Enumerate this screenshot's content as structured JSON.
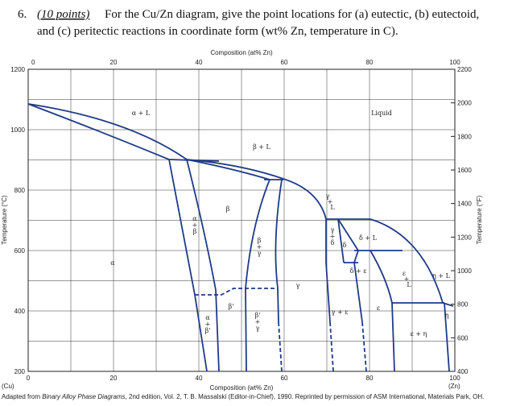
{
  "question": {
    "number": "6.",
    "points": "(10 points)",
    "line1": "For the Cu/Zn diagram, give the point locations for (a) eutectic, (b) eutectoid,",
    "line2": "and (c) peritectic reactions in coordinate form (wt% Zn, temperature in C)."
  },
  "figure": {
    "top_axis_title": "Composition (at% Zn)",
    "top_ticks": [
      "0",
      "20",
      "40",
      "60",
      "80",
      "100"
    ],
    "bottom_axis_title": "Composition (wt% Zn)",
    "bottom_ticks": [
      "0",
      "20",
      "40",
      "60",
      "80",
      "100"
    ],
    "left_axis_title": "Temperature (°C)",
    "left_ticks": [
      "1200",
      "1000",
      "800",
      "600",
      "400",
      "200"
    ],
    "right_axis_title": "Temperature (°F)",
    "right_ticks": [
      "2200",
      "2000",
      "1800",
      "1600",
      "1400",
      "1200",
      "1000",
      "800",
      "600",
      "400"
    ],
    "left_end": "(Cu)",
    "right_end": "(Zn)",
    "regions": [
      [
        "α + L"
      ],
      [
        "Liquid"
      ],
      [
        "β + L"
      ],
      [
        "β"
      ],
      [
        "α",
        "+",
        "β"
      ],
      [
        "α"
      ],
      [
        "β",
        "+",
        "γ"
      ],
      [
        "γ"
      ],
      [
        "γ",
        "+",
        "L"
      ],
      [
        "γ",
        "+",
        "δ"
      ],
      [
        "δ + L"
      ],
      [
        "δ"
      ],
      [
        "δ + ε"
      ],
      [
        "ε",
        "+",
        "L"
      ],
      [
        "η + L"
      ],
      [
        "β'"
      ],
      [
        "γ + ε"
      ],
      [
        "ε"
      ],
      [
        "α",
        "+",
        "β'"
      ],
      [
        "β'",
        "+",
        "γ"
      ],
      [
        "ε + η"
      ],
      [
        "η"
      ]
    ],
    "caption_before": "Adapted from ",
    "caption_title": "Binary Alloy Phase Diagrams",
    "caption_after": ", 2nd edition, Vol. 2, T. B. Massalski (Editor-in-Chief), 1990. Reprinted by permission of ASM International, Materials Park, OH."
  }
}
